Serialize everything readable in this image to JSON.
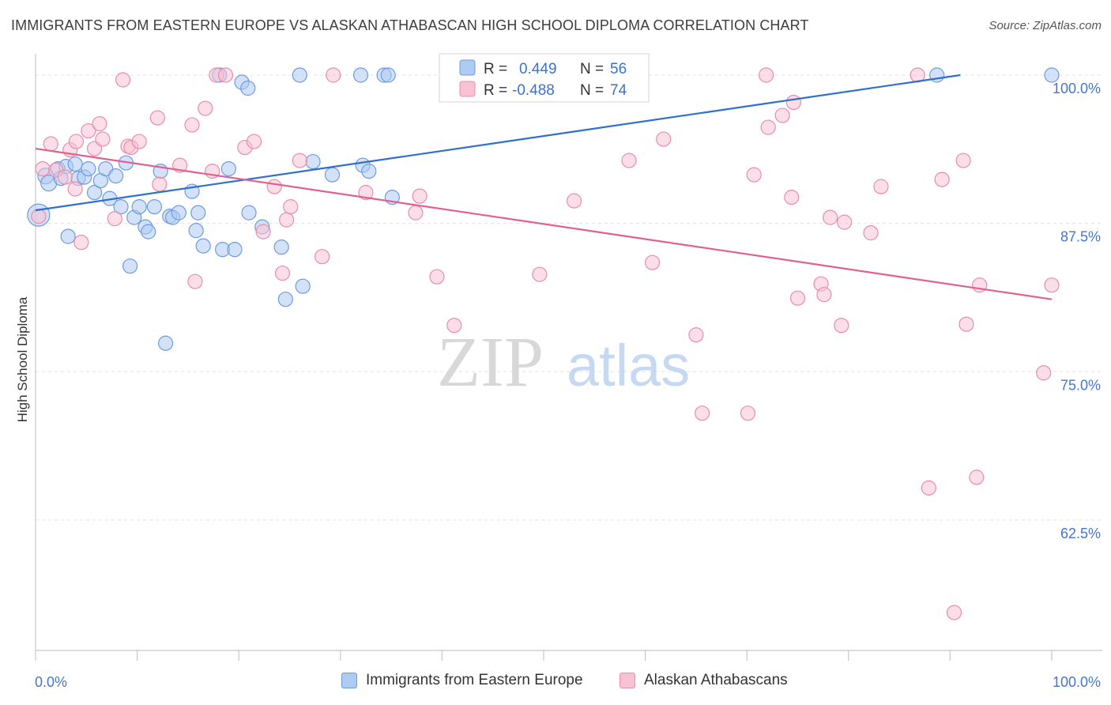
{
  "header": {
    "title": "IMMIGRANTS FROM EASTERN EUROPE VS ALASKAN ATHABASCAN HIGH SCHOOL DIPLOMA CORRELATION CHART",
    "source": "Source: ZipAtlas.com"
  },
  "watermark": {
    "zip": "ZIP",
    "atlas": "atlas"
  },
  "stats_legend": {
    "r_label": "R =",
    "n_label": "N =",
    "rows": [
      {
        "series": "Immigrants from Eastern Europe",
        "r": "0.449",
        "n": "56"
      },
      {
        "series": "Alaskan Athabascans",
        "r": "-0.488",
        "n": "74"
      }
    ]
  },
  "chart_data": {
    "type": "scatter",
    "title": "IMMIGRANTS FROM EASTERN EUROPE VS ALASKAN ATHABASCAN HIGH SCHOOL DIPLOMA CORRELATION CHART",
    "xlabel": "",
    "ylabel": "High School Diploma",
    "xlim": [
      0,
      100
    ],
    "ylim": [
      51.5,
      101
    ],
    "x_tick_labels": [
      "0.0%",
      "100.0%"
    ],
    "y_ticks": [
      62.5,
      75.0,
      87.5,
      100.0
    ],
    "y_tick_labels": [
      "62.5%",
      "75.0%",
      "87.5%",
      "100.0%"
    ],
    "grid": true,
    "legend_placement": "bottom",
    "colors": {
      "blue_fill": "#aecbf2",
      "blue_stroke": "#6d9be0",
      "blue_line": "#2f6fcf",
      "pink_fill": "#f7c2d3",
      "pink_stroke": "#e88dab",
      "pink_line": "#e2608f",
      "tick_label": "#4477cc",
      "grid": "#e3e3e3",
      "axis": "#c8c8c8"
    },
    "series": [
      {
        "name": "Immigrants from Eastern Europe",
        "color": "blue",
        "trend": [
          [
            0.0,
            88.6
          ],
          [
            91.0,
            100.0
          ]
        ],
        "points": [
          [
            0.3,
            88.2,
            14
          ],
          [
            1.0,
            91.5,
            10
          ],
          [
            1.3,
            90.9,
            10
          ],
          [
            2.2,
            92.1,
            9
          ],
          [
            2.5,
            91.3,
            9
          ],
          [
            3.0,
            92.3,
            9
          ],
          [
            3.2,
            86.4,
            9
          ],
          [
            3.9,
            92.5,
            9
          ],
          [
            4.2,
            91.3,
            9
          ],
          [
            4.8,
            91.4,
            9
          ],
          [
            5.2,
            92.1,
            9
          ],
          [
            5.8,
            90.1,
            9
          ],
          [
            6.4,
            91.1,
            9
          ],
          [
            6.9,
            92.1,
            9
          ],
          [
            7.3,
            89.6,
            9
          ],
          [
            7.9,
            91.5,
            9
          ],
          [
            8.4,
            88.9,
            9
          ],
          [
            8.9,
            92.6,
            9
          ],
          [
            9.3,
            83.9,
            9
          ],
          [
            9.7,
            88.0,
            9
          ],
          [
            10.2,
            88.9,
            9
          ],
          [
            10.8,
            87.2,
            9
          ],
          [
            11.1,
            86.8,
            9
          ],
          [
            11.7,
            88.9,
            9
          ],
          [
            12.3,
            91.9,
            9
          ],
          [
            12.8,
            77.4,
            9
          ],
          [
            13.2,
            88.1,
            9
          ],
          [
            13.5,
            88.0,
            9
          ],
          [
            14.1,
            88.4,
            9
          ],
          [
            15.4,
            90.2,
            9
          ],
          [
            15.8,
            86.9,
            9
          ],
          [
            16.0,
            88.4,
            9
          ],
          [
            16.5,
            85.6,
            9
          ],
          [
            18.1,
            100.0,
            9
          ],
          [
            18.4,
            85.3,
            9
          ],
          [
            19.0,
            92.1,
            9
          ],
          [
            19.6,
            85.3,
            9
          ],
          [
            20.3,
            99.4,
            9
          ],
          [
            20.9,
            98.9,
            9
          ],
          [
            21.0,
            88.4,
            9
          ],
          [
            22.3,
            87.2,
            9
          ],
          [
            24.2,
            85.5,
            9
          ],
          [
            24.6,
            81.1,
            9
          ],
          [
            26.0,
            100.0,
            9
          ],
          [
            26.3,
            82.2,
            9
          ],
          [
            27.3,
            92.7,
            9
          ],
          [
            29.2,
            91.6,
            9
          ],
          [
            32.0,
            100.0,
            9
          ],
          [
            32.2,
            92.4,
            9
          ],
          [
            32.8,
            91.9,
            9
          ],
          [
            34.3,
            100.0,
            9
          ],
          [
            34.7,
            100.0,
            9
          ],
          [
            35.1,
            89.7,
            9
          ],
          [
            50.3,
            100.0,
            9
          ],
          [
            88.7,
            100.0,
            9
          ],
          [
            100.0,
            100.0,
            9
          ]
        ]
      },
      {
        "name": "Alaskan Athabascans",
        "color": "pink",
        "trend": [
          [
            0.0,
            93.8
          ],
          [
            100.0,
            81.1
          ]
        ],
        "points": [
          [
            0.3,
            88.1,
            9
          ],
          [
            0.7,
            92.1,
            9
          ],
          [
            1.5,
            94.2,
            9
          ],
          [
            2.0,
            92.0,
            9
          ],
          [
            2.9,
            91.4,
            9
          ],
          [
            3.4,
            93.7,
            9
          ],
          [
            3.9,
            90.4,
            9
          ],
          [
            4.0,
            94.4,
            9
          ],
          [
            4.5,
            85.9,
            9
          ],
          [
            5.2,
            95.3,
            9
          ],
          [
            5.8,
            93.8,
            9
          ],
          [
            6.3,
            95.9,
            9
          ],
          [
            6.6,
            94.6,
            9
          ],
          [
            7.8,
            87.9,
            9
          ],
          [
            8.6,
            99.6,
            9
          ],
          [
            9.1,
            94.0,
            9
          ],
          [
            9.4,
            93.9,
            9
          ],
          [
            10.2,
            94.4,
            9
          ],
          [
            12.0,
            96.4,
            9
          ],
          [
            12.2,
            90.8,
            9
          ],
          [
            14.2,
            92.4,
            9
          ],
          [
            15.4,
            95.8,
            9
          ],
          [
            15.7,
            82.6,
            9
          ],
          [
            16.7,
            97.2,
            9
          ],
          [
            17.4,
            91.9,
            9
          ],
          [
            17.8,
            100.0,
            9
          ],
          [
            18.7,
            100.0,
            9
          ],
          [
            20.6,
            93.9,
            9
          ],
          [
            21.5,
            94.4,
            9
          ],
          [
            22.4,
            86.8,
            9
          ],
          [
            23.5,
            90.6,
            9
          ],
          [
            24.3,
            83.3,
            9
          ],
          [
            24.7,
            87.8,
            9
          ],
          [
            25.1,
            88.9,
            9
          ],
          [
            26.0,
            92.8,
            9
          ],
          [
            28.2,
            84.7,
            9
          ],
          [
            29.3,
            100.0,
            9
          ],
          [
            32.5,
            90.1,
            9
          ],
          [
            37.4,
            88.4,
            9
          ],
          [
            37.8,
            89.8,
            9
          ],
          [
            39.5,
            83.0,
            9
          ],
          [
            41.2,
            78.9,
            9
          ],
          [
            49.6,
            83.2,
            9
          ],
          [
            53.0,
            89.4,
            9
          ],
          [
            58.4,
            92.8,
            9
          ],
          [
            60.7,
            84.2,
            9
          ],
          [
            61.8,
            94.6,
            9
          ],
          [
            65.0,
            78.1,
            9
          ],
          [
            65.6,
            71.5,
            9
          ],
          [
            70.1,
            71.5,
            9
          ],
          [
            70.7,
            91.6,
            9
          ],
          [
            71.9,
            100.0,
            9
          ],
          [
            72.1,
            95.6,
            9
          ],
          [
            73.5,
            96.6,
            9
          ],
          [
            74.4,
            89.7,
            9
          ],
          [
            74.6,
            97.7,
            9
          ],
          [
            75.0,
            81.2,
            9
          ],
          [
            77.3,
            82.4,
            9
          ],
          [
            77.6,
            81.5,
            9
          ],
          [
            78.2,
            88.0,
            9
          ],
          [
            79.3,
            78.9,
            9
          ],
          [
            79.6,
            87.6,
            9
          ],
          [
            82.2,
            86.7,
            9
          ],
          [
            83.2,
            90.6,
            9
          ],
          [
            86.8,
            100.0,
            9
          ],
          [
            87.9,
            65.2,
            9
          ],
          [
            89.2,
            91.2,
            9
          ],
          [
            90.4,
            54.7,
            9
          ],
          [
            91.3,
            92.8,
            9
          ],
          [
            91.6,
            79.0,
            9
          ],
          [
            92.6,
            66.1,
            9
          ],
          [
            92.9,
            82.3,
            9
          ],
          [
            99.2,
            74.9,
            9
          ],
          [
            100.0,
            82.3,
            9
          ]
        ]
      }
    ]
  }
}
